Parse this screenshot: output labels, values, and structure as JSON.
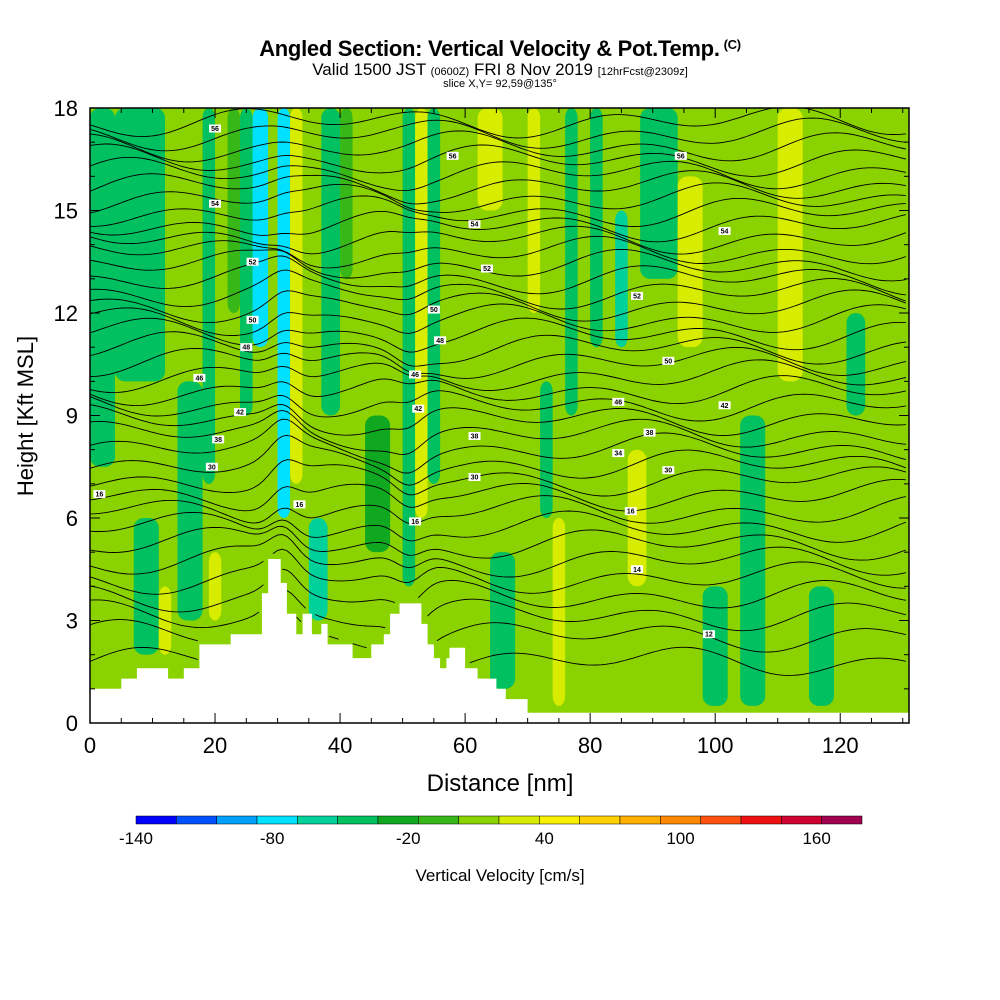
{
  "header": {
    "title": "Angled Section: Vertical Velocity & Pot.Temp.",
    "title_units": "(C)",
    "valid_prefix": "Valid 1500 JST",
    "valid_zulu": "(0600Z)",
    "valid_date": "FRI 8 Nov 2019",
    "forecast": "[12hrFcst@2309z]",
    "slice": "slice X,Y= 92,59@135°"
  },
  "chart_data": {
    "type": "heatmap",
    "xlabel": "Distance [nm]",
    "ylabel": "Height [Kft MSL]",
    "xlim": [
      0,
      131
    ],
    "ylim": [
      0,
      18
    ],
    "x_ticks": [
      0,
      20,
      40,
      60,
      80,
      100,
      120
    ],
    "y_ticks": [
      0,
      3,
      6,
      9,
      12,
      15,
      18
    ],
    "colorbar": {
      "label": "Vertical Velocity [cm/s]",
      "min": -140,
      "max": 180,
      "step": 20,
      "tick_labels": [
        "-140",
        "-80",
        "-20",
        "40",
        "100",
        "160"
      ],
      "tick_values": [
        -140,
        -80,
        -20,
        40,
        100,
        160
      ],
      "colors": [
        "#0000ff",
        "#0050ff",
        "#00a0ff",
        "#00e0ff",
        "#00d09a",
        "#00c060",
        "#10a820",
        "#38b818",
        "#8ad200",
        "#d8ec00",
        "#f8f000",
        "#ffd000",
        "#ffb000",
        "#ff8800",
        "#ff5010",
        "#ee1010",
        "#d00030",
        "#a00050",
        "#800080"
      ]
    },
    "velocity_field": {
      "background": "#8ad200",
      "bands": [
        {
          "x": [
            0,
            4
          ],
          "y": [
            7.5,
            18
          ],
          "value": -40
        },
        {
          "x": [
            4,
            12
          ],
          "y": [
            10,
            18
          ],
          "value": -30
        },
        {
          "x": [
            7,
            11
          ],
          "y": [
            2,
            6
          ],
          "value": -30
        },
        {
          "x": [
            11,
            13
          ],
          "y": [
            2,
            4
          ],
          "value": 50
        },
        {
          "x": [
            14,
            18
          ],
          "y": [
            3,
            10
          ],
          "value": -30
        },
        {
          "x": [
            18,
            20
          ],
          "y": [
            7,
            18
          ],
          "value": -30
        },
        {
          "x": [
            19,
            21
          ],
          "y": [
            3,
            5
          ],
          "value": 40
        },
        {
          "x": [
            22,
            24
          ],
          "y": [
            12,
            18
          ],
          "value": 10
        },
        {
          "x": [
            24,
            26
          ],
          "y": [
            9,
            18
          ],
          "value": -40
        },
        {
          "x": [
            26,
            28.5
          ],
          "y": [
            11,
            18
          ],
          "value": -80
        },
        {
          "x": [
            28.5,
            30
          ],
          "y": [
            8,
            18
          ],
          "value": 20
        },
        {
          "x": [
            30,
            32
          ],
          "y": [
            6,
            18
          ],
          "value": -80
        },
        {
          "x": [
            32,
            34
          ],
          "y": [
            7,
            18
          ],
          "value": 50
        },
        {
          "x": [
            34,
            36
          ],
          "y": [
            6,
            18
          ],
          "value": 20
        },
        {
          "x": [
            35,
            38
          ],
          "y": [
            3,
            6
          ],
          "value": -60
        },
        {
          "x": [
            37,
            40
          ],
          "y": [
            9,
            18
          ],
          "value": -30
        },
        {
          "x": [
            40,
            42
          ],
          "y": [
            13,
            18
          ],
          "value": 10
        },
        {
          "x": [
            44,
            48
          ],
          "y": [
            5,
            9
          ],
          "value": -20
        },
        {
          "x": [
            48,
            50
          ],
          "y": [
            10,
            18
          ],
          "value": 20
        },
        {
          "x": [
            50,
            52
          ],
          "y": [
            4,
            18
          ],
          "value": -40
        },
        {
          "x": [
            52,
            54
          ],
          "y": [
            6,
            18
          ],
          "value": 40
        },
        {
          "x": [
            54,
            56
          ],
          "y": [
            7,
            18
          ],
          "value": -40
        },
        {
          "x": [
            58,
            62
          ],
          "y": [
            12,
            18
          ],
          "value": 20
        },
        {
          "x": [
            62,
            66
          ],
          "y": [
            15,
            18
          ],
          "value": 50
        },
        {
          "x": [
            64,
            68
          ],
          "y": [
            1,
            5
          ],
          "value": -30
        },
        {
          "x": [
            70,
            72
          ],
          "y": [
            12,
            18
          ],
          "value": 40
        },
        {
          "x": [
            72,
            74
          ],
          "y": [
            6,
            10
          ],
          "value": -30
        },
        {
          "x": [
            74,
            76
          ],
          "y": [
            0.5,
            6
          ],
          "value": 40
        },
        {
          "x": [
            76,
            78
          ],
          "y": [
            9,
            18
          ],
          "value": -30
        },
        {
          "x": [
            80,
            82
          ],
          "y": [
            11,
            18
          ],
          "value": -40
        },
        {
          "x": [
            84,
            86
          ],
          "y": [
            11,
            15
          ],
          "value": -60
        },
        {
          "x": [
            86,
            89
          ],
          "y": [
            4,
            8
          ],
          "value": 40
        },
        {
          "x": [
            88,
            94
          ],
          "y": [
            13,
            18
          ],
          "value": -30
        },
        {
          "x": [
            94,
            98
          ],
          "y": [
            11,
            16
          ],
          "value": 40
        },
        {
          "x": [
            98,
            102
          ],
          "y": [
            0.5,
            4
          ],
          "value": -40
        },
        {
          "x": [
            104,
            108
          ],
          "y": [
            0.5,
            9
          ],
          "value": -30
        },
        {
          "x": [
            110,
            114
          ],
          "y": [
            10,
            18
          ],
          "value": 40
        },
        {
          "x": [
            115,
            119
          ],
          "y": [
            0.5,
            4
          ],
          "value": -30
        },
        {
          "x": [
            121,
            124
          ],
          "y": [
            9,
            12
          ],
          "value": -30
        },
        {
          "x": [
            126,
            131
          ],
          "y": [
            12,
            18
          ],
          "value": 20
        }
      ]
    },
    "potential_temperature": {
      "levels": [
        -16,
        -14,
        -12,
        -10,
        -8,
        -6,
        -4,
        -2,
        0,
        2,
        4,
        6,
        8,
        10,
        12,
        14,
        16,
        18,
        20,
        22,
        24,
        26,
        28,
        30,
        32,
        34,
        36,
        38,
        40,
        42,
        44,
        46,
        48,
        50,
        52,
        54,
        56
      ],
      "labels": [
        {
          "x": 1.5,
          "y": 6.7,
          "text": "16"
        },
        {
          "x": 20,
          "y": 17.4,
          "text": "56"
        },
        {
          "x": 20,
          "y": 15.2,
          "text": "54"
        },
        {
          "x": 26,
          "y": 13.5,
          "text": "52"
        },
        {
          "x": 26,
          "y": 11.8,
          "text": "50"
        },
        {
          "x": 25,
          "y": 11.0,
          "text": "48"
        },
        {
          "x": 17.5,
          "y": 10.1,
          "text": "46"
        },
        {
          "x": 24,
          "y": 9.1,
          "text": "42"
        },
        {
          "x": 20.5,
          "y": 8.3,
          "text": "38"
        },
        {
          "x": 19.5,
          "y": 7.5,
          "text": "30"
        },
        {
          "x": 33.5,
          "y": 6.4,
          "text": "16"
        },
        {
          "x": 58,
          "y": 16.6,
          "text": "56"
        },
        {
          "x": 61.5,
          "y": 14.6,
          "text": "54"
        },
        {
          "x": 63.5,
          "y": 13.3,
          "text": "52"
        },
        {
          "x": 55,
          "y": 12.1,
          "text": "50"
        },
        {
          "x": 56,
          "y": 11.2,
          "text": "48"
        },
        {
          "x": 52,
          "y": 10.2,
          "text": "46"
        },
        {
          "x": 52.5,
          "y": 9.2,
          "text": "42"
        },
        {
          "x": 61.5,
          "y": 8.4,
          "text": "38"
        },
        {
          "x": 61.5,
          "y": 7.2,
          "text": "30"
        },
        {
          "x": 52,
          "y": 5.9,
          "text": "16"
        },
        {
          "x": 94.5,
          "y": 16.6,
          "text": "56"
        },
        {
          "x": 101.5,
          "y": 14.4,
          "text": "54"
        },
        {
          "x": 87.5,
          "y": 12.5,
          "text": "52"
        },
        {
          "x": 92.5,
          "y": 10.6,
          "text": "50"
        },
        {
          "x": 84.5,
          "y": 9.4,
          "text": "46"
        },
        {
          "x": 101.5,
          "y": 9.3,
          "text": "42"
        },
        {
          "x": 89.5,
          "y": 8.5,
          "text": "38"
        },
        {
          "x": 84.5,
          "y": 7.9,
          "text": "34"
        },
        {
          "x": 92.5,
          "y": 7.4,
          "text": "30"
        },
        {
          "x": 86.5,
          "y": 6.2,
          "text": "16"
        },
        {
          "x": 87.5,
          "y": 4.5,
          "text": "14"
        },
        {
          "x": 99,
          "y": 2.6,
          "text": "12"
        }
      ]
    },
    "terrain_nm_kft": [
      [
        0,
        1
      ],
      [
        5,
        1
      ],
      [
        5,
        1.3
      ],
      [
        7.5,
        1.3
      ],
      [
        7.5,
        1.6
      ],
      [
        12.5,
        1.6
      ],
      [
        12.5,
        1.3
      ],
      [
        15,
        1.3
      ],
      [
        15,
        1.6
      ],
      [
        17.5,
        1.6
      ],
      [
        17.5,
        2.3
      ],
      [
        22.5,
        2.3
      ],
      [
        22.5,
        2.6
      ],
      [
        27.5,
        2.6
      ],
      [
        27.5,
        3.8
      ],
      [
        28.5,
        3.8
      ],
      [
        28.5,
        4.8
      ],
      [
        30.5,
        4.8
      ],
      [
        30.5,
        4.1
      ],
      [
        31.5,
        4.1
      ],
      [
        31.5,
        3.2
      ],
      [
        33,
        3.2
      ],
      [
        33,
        2.6
      ],
      [
        34,
        2.6
      ],
      [
        34,
        3.2
      ],
      [
        35.5,
        3.2
      ],
      [
        35.5,
        2.6
      ],
      [
        37,
        2.6
      ],
      [
        37,
        2.9
      ],
      [
        38,
        2.9
      ],
      [
        38,
        2.3
      ],
      [
        42,
        2.3
      ],
      [
        42,
        1.9
      ],
      [
        45,
        1.9
      ],
      [
        45,
        2.3
      ],
      [
        47,
        2.3
      ],
      [
        47,
        2.6
      ],
      [
        48,
        2.6
      ],
      [
        48,
        3.2
      ],
      [
        49.5,
        3.2
      ],
      [
        49.5,
        3.5
      ],
      [
        53,
        3.5
      ],
      [
        53,
        2.9
      ],
      [
        54,
        2.9
      ],
      [
        54,
        2.3
      ],
      [
        55,
        2.3
      ],
      [
        55,
        1.9
      ],
      [
        56,
        1.9
      ],
      [
        56,
        1.6
      ],
      [
        57,
        1.6
      ],
      [
        57,
        1.9
      ],
      [
        57.5,
        1.9
      ],
      [
        57.5,
        2.2
      ],
      [
        60,
        2.2
      ],
      [
        60,
        1.6
      ],
      [
        62,
        1.6
      ],
      [
        62,
        1.3
      ],
      [
        65,
        1.3
      ],
      [
        65,
        1.0
      ],
      [
        66.5,
        1.0
      ],
      [
        66.5,
        0.7
      ],
      [
        70,
        0.7
      ],
      [
        70,
        0.3
      ],
      [
        131,
        0.3
      ]
    ]
  }
}
